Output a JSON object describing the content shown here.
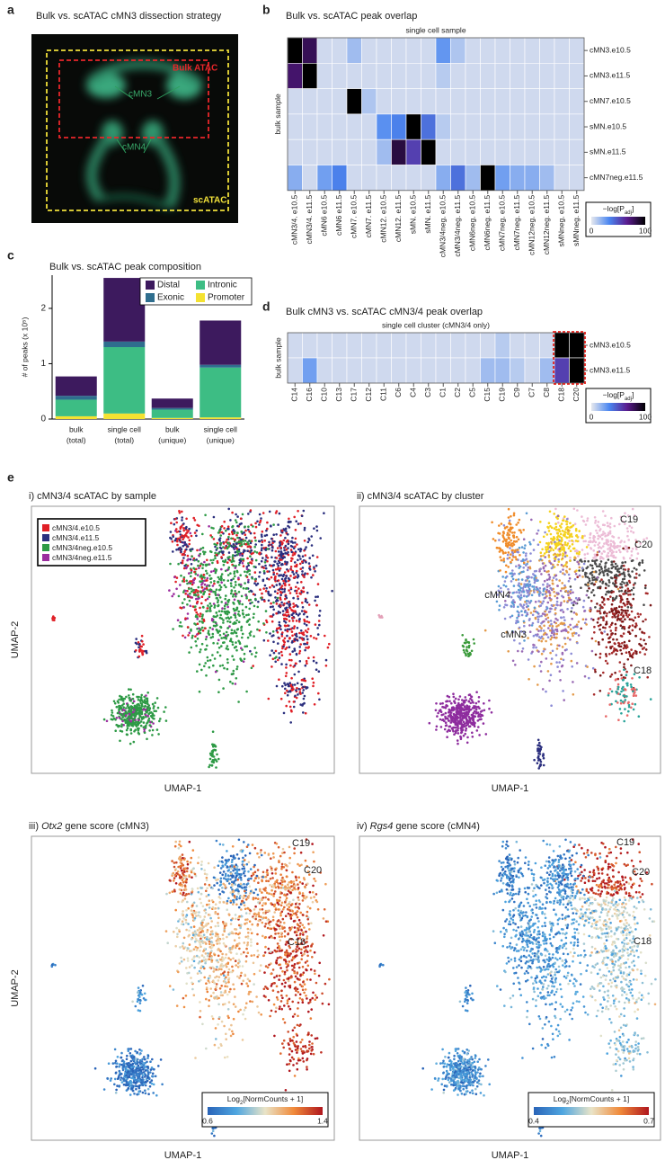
{
  "figure": {
    "panel_labels": [
      "a",
      "b",
      "c",
      "d",
      "e"
    ],
    "panel_a": {
      "title": "Bulk vs. scATAC cMN3 dissection strategy",
      "bulk": "Bulk ATAC",
      "cmn3": "cMN3",
      "cmn4": "cMN4",
      "scatac": "scATAC"
    },
    "panel_e": {
      "umap_x": "UMAP-1",
      "umap_y": "UMAP-2",
      "subpanels": [
        {
          "title_parts": [
            "i) cMN3/4 scATAC by sample"
          ],
          "legend": [
            {
              "name": "cMN3/4.e10.5",
              "color": "#e01f26"
            },
            {
              "name": "cMN3/4.e11.5",
              "color": "#2b2f7e"
            },
            {
              "name": "cMN3/4neg.e10.5",
              "color": "#2e9a46"
            },
            {
              "name": "cMN3/4neg.e11.5",
              "color": "#9b2d9e"
            }
          ]
        },
        {
          "title_parts": [
            "ii) cMN3/4 scATAC by cluster"
          ],
          "annotations": [
            "C19",
            "C20",
            "C18",
            "cMN4",
            "cMN3"
          ]
        },
        {
          "title_parts": [
            "iii) ",
            "Otx2",
            " gene score (cMN3)"
          ],
          "annotations": [
            "C19",
            "C20",
            "C18"
          ],
          "colorbar": {
            "label_parts": [
              "Log",
              "2",
              "[NormCounts + 1]"
            ],
            "ticks": [
              0.6,
              1.4
            ]
          }
        },
        {
          "title_parts": [
            "iv) ",
            "Rgs4",
            " gene score (cMN4)"
          ],
          "annotations": [
            "C19",
            "C20",
            "C18"
          ],
          "colorbar": {
            "label_parts": [
              "Log",
              "2",
              "[NormCounts + 1]"
            ],
            "ticks": [
              0.4,
              0.7
            ]
          }
        }
      ]
    }
  },
  "chart_data": [
    {
      "type": "heatmap",
      "title": "Bulk vs. scATAC peak overlap",
      "subtitle": "single cell sample",
      "y_label": "bulk sample",
      "rows": [
        "cMN3.e10.5",
        "cMN3.e11.5",
        "cMN7.e10.5",
        "sMN.e10.5",
        "sMN.e11.5",
        "cMN7neg.e11.5"
      ],
      "columns": [
        "cMN3/4. e10.5",
        "cMN3/4. e11.5",
        "cMN6 e10.5",
        "cMN6 e11.5",
        "cMN7. e10.5",
        "cMN7. e11.5",
        "cMN12. e10.5",
        "cMN12. e11.5",
        "sMN. e10.5",
        "sMN. e11.5",
        "cMN3/4neg. e10.5",
        "cMN3/4neg. e11.5",
        "cMN6neg. e10.5",
        "cMN6neg. e11.5",
        "cMN7neg. e10.5",
        "cMN7neg. e11.5",
        "cMN12neg. e10.5",
        "cMN12neg. e11.5",
        "sMNneg. e10.5",
        "sMNneg. e11.5"
      ],
      "values": [
        [
          100,
          80,
          5,
          5,
          15,
          5,
          5,
          5,
          5,
          5,
          28,
          12,
          5,
          5,
          5,
          5,
          5,
          5,
          5,
          5
        ],
        [
          75,
          100,
          5,
          5,
          5,
          5,
          5,
          5,
          5,
          5,
          10,
          5,
          5,
          5,
          5,
          5,
          5,
          5,
          5,
          5
        ],
        [
          5,
          5,
          5,
          5,
          100,
          12,
          5,
          5,
          5,
          5,
          5,
          5,
          5,
          5,
          5,
          5,
          5,
          5,
          5,
          5
        ],
        [
          5,
          5,
          5,
          5,
          5,
          5,
          30,
          35,
          100,
          40,
          10,
          5,
          5,
          5,
          5,
          5,
          5,
          5,
          5,
          5
        ],
        [
          5,
          5,
          5,
          5,
          5,
          5,
          15,
          85,
          55,
          100,
          5,
          5,
          5,
          5,
          5,
          5,
          5,
          5,
          5,
          5
        ],
        [
          20,
          5,
          25,
          35,
          5,
          5,
          5,
          5,
          5,
          5,
          20,
          40,
          15,
          100,
          25,
          20,
          20,
          15,
          5,
          5
        ]
      ],
      "zlim": [
        0,
        100
      ],
      "colors": [
        "#e6e8ee",
        "#4a86f0",
        "#5a1b8e",
        "#000000"
      ],
      "colorbar": {
        "label_parts": [
          "−log[P",
          "adj",
          "]"
        ],
        "ticks": [
          0,
          100
        ]
      }
    },
    {
      "type": "bar",
      "title": "Bulk vs. scATAC peak composition",
      "y_label": "# of peaks (x 10⁵)",
      "categories": [
        [
          "bulk",
          "(total)"
        ],
        [
          "single cell",
          "(total)"
        ],
        [
          "bulk",
          "(unique)"
        ],
        [
          "single cell",
          "(unique)"
        ]
      ],
      "series": [
        {
          "name": "Promoter",
          "color": "#f4e231",
          "values": [
            0.05,
            0.1,
            0.02,
            0.03
          ]
        },
        {
          "name": "Intronic",
          "color": "#3dbd84",
          "values": [
            0.3,
            1.2,
            0.15,
            0.9
          ]
        },
        {
          "name": "Exonic",
          "color": "#2f6e8e",
          "values": [
            0.07,
            0.1,
            0.03,
            0.05
          ]
        },
        {
          "name": "Distal",
          "color": "#3d1a5e",
          "values": [
            0.35,
            1.15,
            0.17,
            0.8
          ]
        }
      ],
      "ylim": [
        0,
        2.6
      ],
      "yticks": [
        0,
        1,
        2
      ]
    },
    {
      "type": "heatmap",
      "title": "Bulk cMN3 vs. scATAC cMN3/4 peak overlap",
      "subtitle": "single cell cluster (cMN3/4 only)",
      "y_label": "bulk sample",
      "rows": [
        "cMN3.e10.5",
        "cMN3.e11.5"
      ],
      "columns": [
        "C14",
        "C16",
        "C10",
        "C13",
        "C17",
        "C12",
        "C11",
        "C6",
        "C4",
        "C3",
        "C1",
        "C2",
        "C5",
        "C15",
        "C19",
        "C9",
        "C7",
        "C8",
        "C18",
        "C20"
      ],
      "values": [
        [
          5,
          5,
          5,
          5,
          5,
          5,
          5,
          5,
          5,
          5,
          5,
          5,
          5,
          5,
          10,
          5,
          5,
          5,
          100,
          100
        ],
        [
          5,
          25,
          5,
          5,
          5,
          5,
          5,
          5,
          5,
          5,
          5,
          5,
          5,
          15,
          15,
          10,
          5,
          15,
          55,
          100
        ]
      ],
      "zlim": [
        0,
        100
      ],
      "colors": [
        "#e6e8ee",
        "#4a86f0",
        "#5a1b8e",
        "#000000"
      ],
      "highlight": {
        "columns": [
          18,
          19
        ],
        "color": "#e0201b"
      },
      "colorbar": {
        "label_parts": [
          "−log[P",
          "adj",
          "]"
        ],
        "ticks": [
          0,
          100
        ]
      }
    }
  ]
}
